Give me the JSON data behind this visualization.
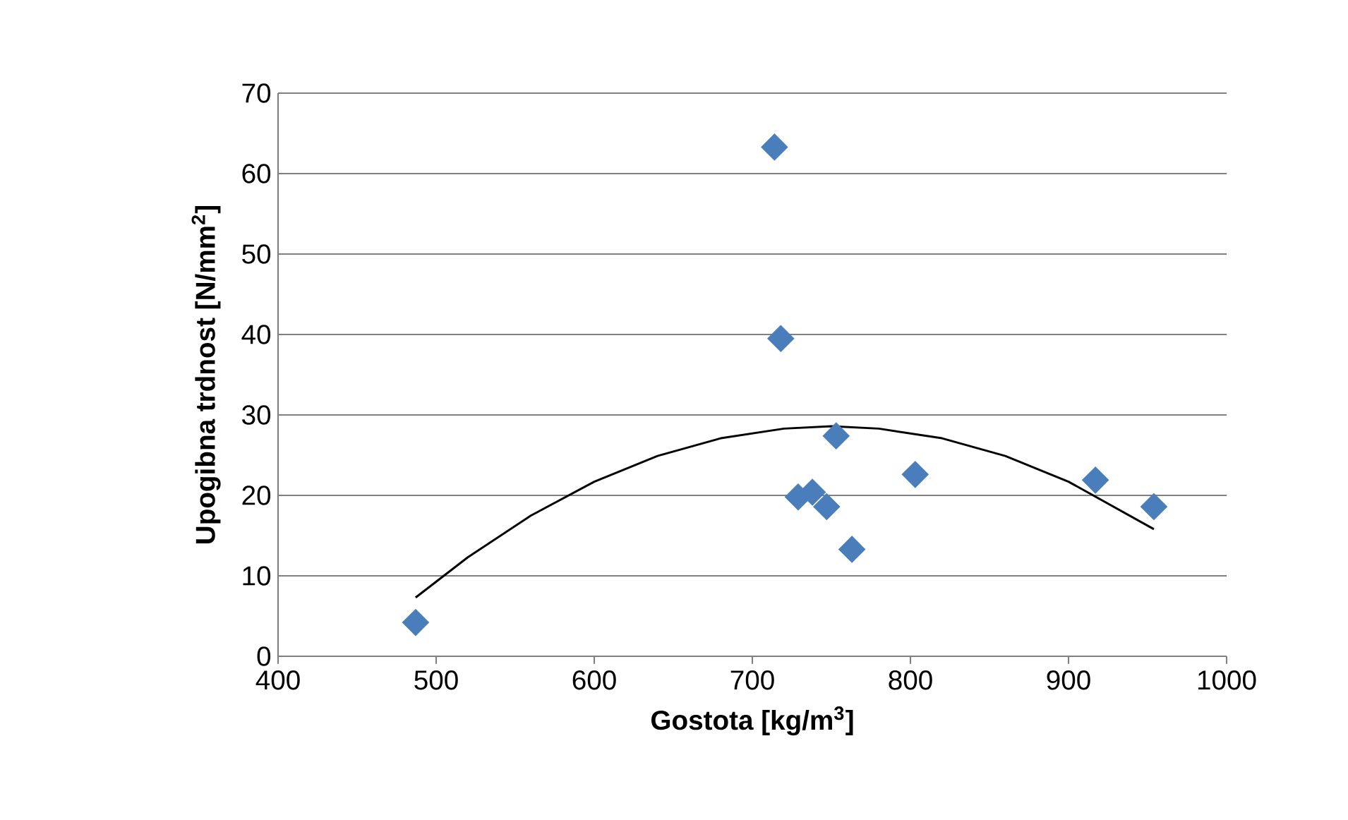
{
  "chart_data": {
    "type": "scatter",
    "xlabel": "Gostota [kg/m$^{3}$]",
    "ylabel": "Upogibna trdnost [N/mm$^{2}$]",
    "xlim": [
      400,
      1000
    ],
    "ylim": [
      0,
      70
    ],
    "xticks": [
      400,
      500,
      600,
      700,
      800,
      900,
      1000
    ],
    "yticks": [
      0,
      10,
      20,
      30,
      40,
      50,
      60,
      70
    ],
    "grid": "y",
    "marker": "diamond",
    "series": [
      {
        "color": "#4a7ebb",
        "x": [
          487,
          714,
          718,
          729,
          738,
          747,
          753,
          763,
          803,
          917,
          954
        ],
        "values": [
          4.2,
          63.3,
          39.5,
          19.8,
          20.4,
          18.6,
          27.4,
          13.3,
          22.6,
          21.9,
          18.6
        ]
      },
      {
        "type": "line",
        "color": "#000000",
        "marker": "none",
        "line_style": "solid",
        "x": [
          487,
          520,
          560,
          600,
          640,
          680,
          720,
          750,
          780,
          820,
          860,
          900,
          954
        ],
        "values": [
          7.3,
          12.3,
          17.5,
          21.7,
          24.9,
          27.1,
          28.3,
          28.6,
          28.3,
          27.1,
          24.9,
          21.7,
          15.8
        ]
      }
    ]
  }
}
